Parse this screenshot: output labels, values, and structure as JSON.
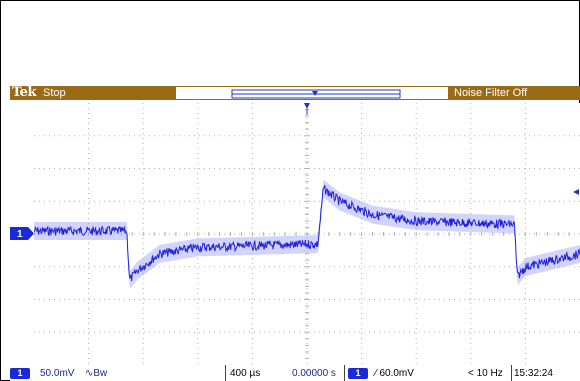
{
  "topbar": {
    "logo": "Tek",
    "run_state": "Stop",
    "noise_filter": "Noise Filter Off"
  },
  "channel_marker": "1",
  "bottombar": {
    "ch1_badge": "1",
    "ch1_scale": "50.0mV",
    "ch1_coupling": "∿Bw",
    "timebase": "400 µs",
    "trigger_position": "0.00000 s",
    "trigger_badge": "1",
    "trigger_level": "⁄ 60.0mV",
    "trigger_freq": "< 10 Hz",
    "clock": "15:32:24"
  },
  "colors": {
    "trace": "#2222dd",
    "trace_halo": "#aab0ff",
    "topbar": "#9a6b16",
    "grid": "#b0b0b0"
  },
  "chart_data": {
    "type": "line",
    "waveform_points_v": [
      [
        0.0,
        0.0
      ],
      [
        1.7,
        0.0
      ],
      [
        1.75,
        -0.075
      ],
      [
        1.9,
        -0.06
      ],
      [
        2.3,
        -0.035
      ],
      [
        3.0,
        -0.025
      ],
      [
        5.2,
        -0.02
      ],
      [
        5.3,
        0.065
      ],
      [
        5.6,
        0.045
      ],
      [
        6.2,
        0.025
      ],
      [
        7.0,
        0.015
      ],
      [
        8.8,
        0.01
      ],
      [
        8.85,
        -0.07
      ],
      [
        9.0,
        -0.055
      ],
      [
        10.0,
        -0.035
      ]
    ],
    "x_divisions": 10,
    "y_divisions": 8,
    "grid": true
  }
}
